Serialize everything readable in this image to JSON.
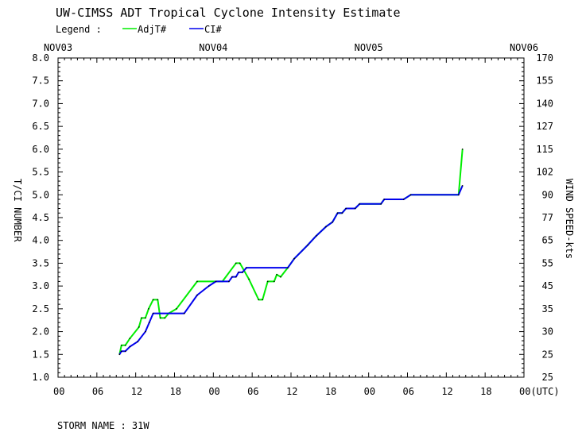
{
  "chart_data": {
    "type": "line",
    "title": "UW-CIMSS ADT Tropical Cyclone Intensity Estimate",
    "legend_label": "Legend :",
    "legend_placement": "top-left",
    "xlabel": "",
    "ylabel": "T/CI NUMBER",
    "ylabel_right": "WIND SPEED-kts",
    "xlim_hours": [
      0,
      72
    ],
    "ylim": [
      1.0,
      8.0
    ],
    "date_labels": [
      {
        "label": "NOV03",
        "hour": 0
      },
      {
        "label": "NOV04",
        "hour": 24
      },
      {
        "label": "NOV05",
        "hour": 48
      },
      {
        "label": "NOV06",
        "hour": 72
      }
    ],
    "x_tick_labels": [
      "00",
      "06",
      "12",
      "18",
      "00",
      "06",
      "12",
      "18",
      "00",
      "06",
      "12",
      "18",
      "00(UTC)"
    ],
    "y_tick_labels": [
      "8.0",
      "7.5",
      "7.0",
      "6.5",
      "6.0",
      "5.5",
      "5.0",
      "4.5",
      "4.0",
      "3.5",
      "3.0",
      "2.5",
      "2.0",
      "1.5",
      "1.0"
    ],
    "y_right_tick_labels": [
      "170",
      "155",
      "140",
      "127",
      "115",
      "102",
      "90",
      "77",
      "65",
      "55",
      "45",
      "35",
      "30",
      "25",
      "25"
    ],
    "footer": "STORM NAME : 31W",
    "series": [
      {
        "name": "AdjT#",
        "color": "#00ee00",
        "x_hours": [
          9.5,
          9.8,
          10.4,
          11.1,
          12.5,
          12.9,
          13.5,
          14.0,
          14.7,
          15.4,
          15.8,
          16.5,
          17.1,
          18.3,
          21.5,
          25.4,
          27.5,
          28.1,
          29.5,
          31.0,
          31.6,
          32.4,
          33.4,
          33.8,
          34.4,
          35.5,
          36.5,
          38.6,
          39.9,
          41.4,
          42.4,
          43.2,
          43.9,
          44.5,
          45.9,
          46.6,
          49.9,
          50.4,
          53.4,
          54.5,
          61.9,
          62.5
        ],
        "values": [
          1.5,
          1.7,
          1.7,
          1.85,
          2.1,
          2.3,
          2.3,
          2.5,
          2.7,
          2.7,
          2.3,
          2.3,
          2.4,
          2.5,
          3.1,
          3.1,
          3.5,
          3.5,
          3.15,
          2.7,
          2.7,
          3.1,
          3.1,
          3.25,
          3.2,
          3.4,
          3.6,
          3.9,
          4.1,
          4.3,
          4.4,
          4.6,
          4.6,
          4.7,
          4.7,
          4.8,
          4.8,
          4.9,
          4.9,
          5.0,
          5.0,
          6.0
        ]
      },
      {
        "name": "CI#",
        "color": "#0000ee",
        "x_hours": [
          9.5,
          9.8,
          10.4,
          11.1,
          12.3,
          13.5,
          14.1,
          14.7,
          19.5,
          21.5,
          23.3,
          24.4,
          26.4,
          26.9,
          27.5,
          27.9,
          28.5,
          29.1,
          35.5,
          36.5,
          38.6,
          39.9,
          41.4,
          42.4,
          43.2,
          43.9,
          44.5,
          45.9,
          46.6,
          49.9,
          50.4,
          53.4,
          54.5,
          61.9,
          62.5
        ],
        "values": [
          1.5,
          1.57,
          1.57,
          1.67,
          1.78,
          2.0,
          2.2,
          2.4,
          2.4,
          2.8,
          3.0,
          3.1,
          3.1,
          3.2,
          3.2,
          3.3,
          3.3,
          3.4,
          3.4,
          3.6,
          3.9,
          4.1,
          4.3,
          4.4,
          4.6,
          4.6,
          4.7,
          4.7,
          4.8,
          4.8,
          4.9,
          4.9,
          5.0,
          5.0,
          5.2
        ]
      }
    ]
  }
}
